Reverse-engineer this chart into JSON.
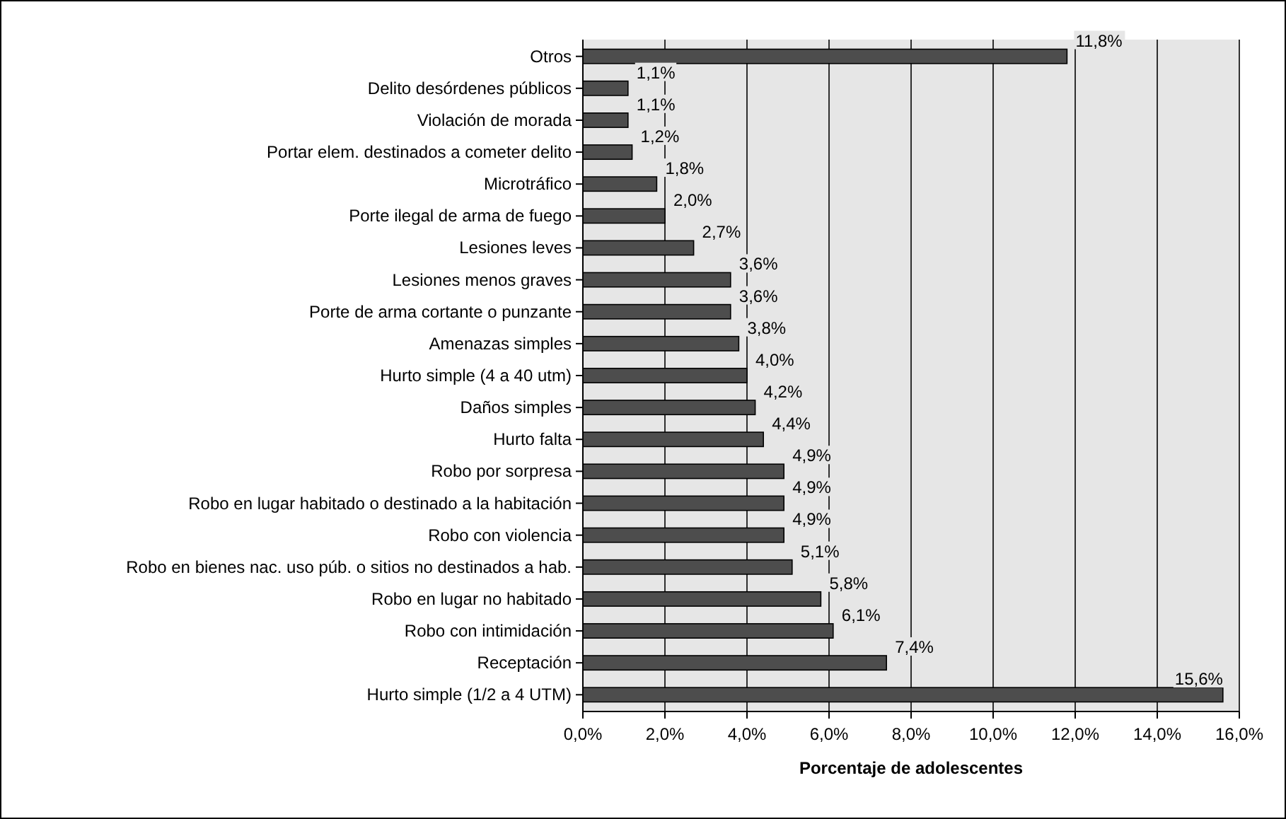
{
  "chart_data": {
    "type": "bar",
    "orientation": "horizontal",
    "xlabel": "Porcentaje de adolescentes",
    "categories": [
      "Otros",
      "Delito desórdenes públicos",
      "Violación de morada",
      "Portar elem. destinados a cometer delito",
      "Microtráfico",
      "Porte ilegal de arma de fuego",
      "Lesiones leves",
      "Lesiones menos graves",
      "Porte de arma cortante o punzante",
      "Amenazas simples",
      "Hurto simple (4 a 40 utm)",
      "Daños simples",
      "Hurto falta",
      "Robo por sorpresa",
      "Robo en lugar habitado o destinado a la habitación",
      "Robo con violencia",
      "Robo en bienes nac. uso púb. o sitios no destinados a hab.",
      "Robo en lugar no habitado",
      "Robo con intimidación",
      "Receptación",
      "Hurto simple (1/2 a 4 UTM)"
    ],
    "values": [
      11.8,
      1.1,
      1.1,
      1.2,
      1.8,
      2.0,
      2.7,
      3.6,
      3.6,
      3.8,
      4.0,
      4.2,
      4.4,
      4.9,
      4.9,
      4.9,
      5.1,
      5.8,
      6.1,
      7.4,
      15.6
    ],
    "value_labels": [
      "11,8%",
      "1,1%",
      "1,1%",
      "1,2%",
      "1,8%",
      "2,0%",
      "2,7%",
      "3,6%",
      "3,6%",
      "3,8%",
      "4,0%",
      "4,2%",
      "4,4%",
      "4,9%",
      "4,9%",
      "4,9%",
      "5,1%",
      "5,8%",
      "6,1%",
      "7,4%",
      "15,6%"
    ],
    "color": "#4d4d4d",
    "xlim": [
      0,
      16
    ],
    "xticks": [
      {
        "value": 0,
        "label": "0,0%"
      },
      {
        "value": 2,
        "label": "2,0%"
      },
      {
        "value": 4,
        "label": "4,0%"
      },
      {
        "value": 6,
        "label": "6,0%"
      },
      {
        "value": 8,
        "label": "8,0%"
      },
      {
        "value": 10,
        "label": "10,0%"
      },
      {
        "value": 12,
        "label": "12,0%"
      },
      {
        "value": 14,
        "label": "14,0%"
      },
      {
        "value": 16,
        "label": "16,0%"
      }
    ],
    "grid": "x"
  }
}
